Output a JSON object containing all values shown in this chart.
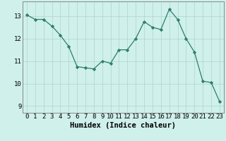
{
  "x": [
    0,
    1,
    2,
    3,
    4,
    5,
    6,
    7,
    8,
    9,
    10,
    11,
    12,
    13,
    14,
    15,
    16,
    17,
    18,
    19,
    20,
    21,
    22,
    23
  ],
  "y": [
    13.05,
    12.85,
    12.85,
    12.55,
    12.15,
    11.65,
    10.75,
    10.7,
    10.65,
    11.0,
    10.9,
    11.5,
    11.5,
    12.0,
    12.75,
    12.5,
    12.4,
    13.3,
    12.85,
    12.0,
    11.4,
    10.1,
    10.05,
    9.2
  ],
  "xlabel": "Humidex (Indice chaleur)",
  "xlim": [
    -0.5,
    23.5
  ],
  "ylim": [
    8.7,
    13.65
  ],
  "yticks": [
    9,
    10,
    11,
    12,
    13
  ],
  "xticks": [
    0,
    1,
    2,
    3,
    4,
    5,
    6,
    7,
    8,
    9,
    10,
    11,
    12,
    13,
    14,
    15,
    16,
    17,
    18,
    19,
    20,
    21,
    22,
    23
  ],
  "line_color": "#2e7d6e",
  "marker_color": "#2e7d6e",
  "bg_color": "#cff0eb",
  "plot_bg_color": "#cff0eb",
  "grid_color": "#aed4cc",
  "label_fontsize": 7.5,
  "tick_fontsize": 6.5
}
